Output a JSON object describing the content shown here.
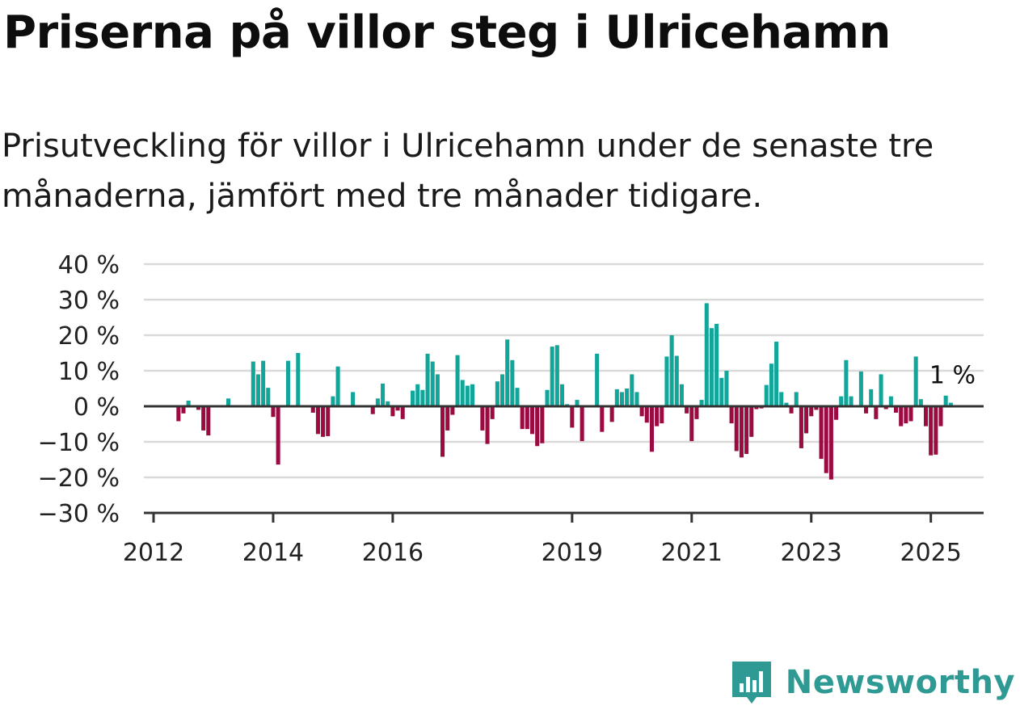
{
  "title": "Priserna på villor steg i Ulricehamn",
  "subtitle": "Prisutveckling för villor i Ulricehamn under de senaste tre månaderna, jämfört med tre månader tidigare.",
  "brand": {
    "name": "Newsworthy",
    "color": "#2e9a93"
  },
  "chart_data": {
    "type": "bar",
    "y_ticks": [
      {
        "value": 40,
        "label": "40 %"
      },
      {
        "value": 30,
        "label": "30 %"
      },
      {
        "value": 20,
        "label": "20 %"
      },
      {
        "value": 10,
        "label": "10 %"
      },
      {
        "value": 0,
        "label": "0 %"
      },
      {
        "value": -10,
        "label": "−10 %"
      },
      {
        "value": -20,
        "label": "−20 %"
      },
      {
        "value": -30,
        "label": "−30 %"
      }
    ],
    "ylim": [
      -30,
      40
    ],
    "x_ticks": [
      {
        "date": "2012-01",
        "label": "2012"
      },
      {
        "date": "2014-01",
        "label": "2014"
      },
      {
        "date": "2016-01",
        "label": "2016"
      },
      {
        "date": "2019-01",
        "label": "2019"
      },
      {
        "date": "2021-01",
        "label": "2021"
      },
      {
        "date": "2023-01",
        "label": "2023"
      },
      {
        "date": "2025-01",
        "label": "2025"
      }
    ],
    "xlim": [
      "2012-01",
      "2025-09"
    ],
    "grid": true,
    "colors": {
      "positive": "#12a59a",
      "negative": "#9b0a40",
      "grid": "#d9d9d9",
      "axis": "#333333"
    },
    "annotation": {
      "text": "1 %",
      "date": "2025-02"
    },
    "values": [
      {
        "date": "2012-06",
        "value": -4.2
      },
      {
        "date": "2012-07",
        "value": -2.0
      },
      {
        "date": "2012-08",
        "value": 1.6
      },
      {
        "date": "2012-10",
        "value": -1.0
      },
      {
        "date": "2012-11",
        "value": -6.8
      },
      {
        "date": "2012-12",
        "value": -8.2
      },
      {
        "date": "2013-04",
        "value": 2.2
      },
      {
        "date": "2013-09",
        "value": 12.6
      },
      {
        "date": "2013-10",
        "value": 9.0
      },
      {
        "date": "2013-11",
        "value": 12.8
      },
      {
        "date": "2013-12",
        "value": 5.2
      },
      {
        "date": "2014-01",
        "value": -3.0
      },
      {
        "date": "2014-02",
        "value": -16.4
      },
      {
        "date": "2014-04",
        "value": 12.8
      },
      {
        "date": "2014-06",
        "value": 15.0
      },
      {
        "date": "2014-09",
        "value": -1.8
      },
      {
        "date": "2014-10",
        "value": -7.8
      },
      {
        "date": "2014-11",
        "value": -8.6
      },
      {
        "date": "2014-12",
        "value": -8.4
      },
      {
        "date": "2015-01",
        "value": 2.8
      },
      {
        "date": "2015-02",
        "value": 11.2
      },
      {
        "date": "2015-05",
        "value": 4.0
      },
      {
        "date": "2015-09",
        "value": -2.2
      },
      {
        "date": "2015-10",
        "value": 2.2
      },
      {
        "date": "2015-11",
        "value": 6.4
      },
      {
        "date": "2015-12",
        "value": 1.4
      },
      {
        "date": "2016-01",
        "value": -2.8
      },
      {
        "date": "2016-02",
        "value": -1.2
      },
      {
        "date": "2016-03",
        "value": -3.6
      },
      {
        "date": "2016-05",
        "value": 4.4
      },
      {
        "date": "2016-06",
        "value": 6.2
      },
      {
        "date": "2016-07",
        "value": 4.6
      },
      {
        "date": "2016-08",
        "value": 14.8
      },
      {
        "date": "2016-09",
        "value": 12.6
      },
      {
        "date": "2016-10",
        "value": 9.0
      },
      {
        "date": "2016-11",
        "value": -14.2
      },
      {
        "date": "2016-12",
        "value": -6.8
      },
      {
        "date": "2017-01",
        "value": -2.4
      },
      {
        "date": "2017-02",
        "value": 14.4
      },
      {
        "date": "2017-03",
        "value": 7.4
      },
      {
        "date": "2017-04",
        "value": 5.8
      },
      {
        "date": "2017-05",
        "value": 6.2
      },
      {
        "date": "2017-07",
        "value": -6.8
      },
      {
        "date": "2017-08",
        "value": -10.6
      },
      {
        "date": "2017-09",
        "value": -3.6
      },
      {
        "date": "2017-10",
        "value": 7.0
      },
      {
        "date": "2017-11",
        "value": 9.0
      },
      {
        "date": "2017-12",
        "value": 18.8
      },
      {
        "date": "2018-01",
        "value": 13.0
      },
      {
        "date": "2018-02",
        "value": 5.2
      },
      {
        "date": "2018-03",
        "value": -6.4
      },
      {
        "date": "2018-04",
        "value": -6.4
      },
      {
        "date": "2018-05",
        "value": -7.8
      },
      {
        "date": "2018-06",
        "value": -11.2
      },
      {
        "date": "2018-07",
        "value": -10.4
      },
      {
        "date": "2018-08",
        "value": 4.6
      },
      {
        "date": "2018-09",
        "value": 16.8
      },
      {
        "date": "2018-10",
        "value": 17.2
      },
      {
        "date": "2018-11",
        "value": 6.2
      },
      {
        "date": "2018-12",
        "value": 0.6
      },
      {
        "date": "2019-01",
        "value": -6.0
      },
      {
        "date": "2019-02",
        "value": 1.8
      },
      {
        "date": "2019-03",
        "value": -9.8
      },
      {
        "date": "2019-06",
        "value": 14.8
      },
      {
        "date": "2019-07",
        "value": -7.2
      },
      {
        "date": "2019-09",
        "value": -4.4
      },
      {
        "date": "2019-10",
        "value": 4.8
      },
      {
        "date": "2019-11",
        "value": 4.0
      },
      {
        "date": "2019-12",
        "value": 5.0
      },
      {
        "date": "2020-01",
        "value": 9.0
      },
      {
        "date": "2020-02",
        "value": 4.0
      },
      {
        "date": "2020-03",
        "value": -2.8
      },
      {
        "date": "2020-04",
        "value": -4.6
      },
      {
        "date": "2020-05",
        "value": -12.8
      },
      {
        "date": "2020-06",
        "value": -5.6
      },
      {
        "date": "2020-07",
        "value": -4.8
      },
      {
        "date": "2020-08",
        "value": 14.0
      },
      {
        "date": "2020-09",
        "value": 20.0
      },
      {
        "date": "2020-10",
        "value": 14.2
      },
      {
        "date": "2020-11",
        "value": 6.2
      },
      {
        "date": "2020-12",
        "value": -2.0
      },
      {
        "date": "2021-01",
        "value": -9.8
      },
      {
        "date": "2021-02",
        "value": -3.6
      },
      {
        "date": "2021-03",
        "value": 1.8
      },
      {
        "date": "2021-04",
        "value": 29.0
      },
      {
        "date": "2021-05",
        "value": 22.0
      },
      {
        "date": "2021-06",
        "value": 23.2
      },
      {
        "date": "2021-07",
        "value": 8.0
      },
      {
        "date": "2021-08",
        "value": 10.0
      },
      {
        "date": "2021-09",
        "value": -4.8
      },
      {
        "date": "2021-10",
        "value": -12.6
      },
      {
        "date": "2021-11",
        "value": -14.4
      },
      {
        "date": "2021-12",
        "value": -13.4
      },
      {
        "date": "2022-01",
        "value": -8.6
      },
      {
        "date": "2022-02",
        "value": -0.8
      },
      {
        "date": "2022-03",
        "value": -0.6
      },
      {
        "date": "2022-04",
        "value": 6.0
      },
      {
        "date": "2022-05",
        "value": 12.0
      },
      {
        "date": "2022-06",
        "value": 18.2
      },
      {
        "date": "2022-07",
        "value": 4.0
      },
      {
        "date": "2022-08",
        "value": 1.0
      },
      {
        "date": "2022-09",
        "value": -2.0
      },
      {
        "date": "2022-10",
        "value": 4.0
      },
      {
        "date": "2022-11",
        "value": -11.8
      },
      {
        "date": "2022-12",
        "value": -7.6
      },
      {
        "date": "2023-01",
        "value": -2.8
      },
      {
        "date": "2023-02",
        "value": -1.0
      },
      {
        "date": "2023-03",
        "value": -14.8
      },
      {
        "date": "2023-04",
        "value": -18.8
      },
      {
        "date": "2023-05",
        "value": -20.6
      },
      {
        "date": "2023-06",
        "value": -3.8
      },
      {
        "date": "2023-07",
        "value": 2.8
      },
      {
        "date": "2023-08",
        "value": 13.0
      },
      {
        "date": "2023-09",
        "value": 2.8
      },
      {
        "date": "2023-11",
        "value": 9.8
      },
      {
        "date": "2023-12",
        "value": -2.0
      },
      {
        "date": "2024-01",
        "value": 4.8
      },
      {
        "date": "2024-02",
        "value": -3.6
      },
      {
        "date": "2024-03",
        "value": 9.0
      },
      {
        "date": "2024-04",
        "value": -0.8
      },
      {
        "date": "2024-05",
        "value": 2.8
      },
      {
        "date": "2024-06",
        "value": -1.8
      },
      {
        "date": "2024-07",
        "value": -5.6
      },
      {
        "date": "2024-08",
        "value": -4.8
      },
      {
        "date": "2024-09",
        "value": -4.2
      },
      {
        "date": "2024-10",
        "value": 14.0
      },
      {
        "date": "2024-11",
        "value": 2.0
      },
      {
        "date": "2024-12",
        "value": -5.6
      },
      {
        "date": "2025-01",
        "value": -13.8
      },
      {
        "date": "2025-02",
        "value": -13.6
      },
      {
        "date": "2025-03",
        "value": -5.6
      },
      {
        "date": "2025-04",
        "value": 3.0
      },
      {
        "date": "2025-05",
        "value": 1.0
      }
    ]
  }
}
